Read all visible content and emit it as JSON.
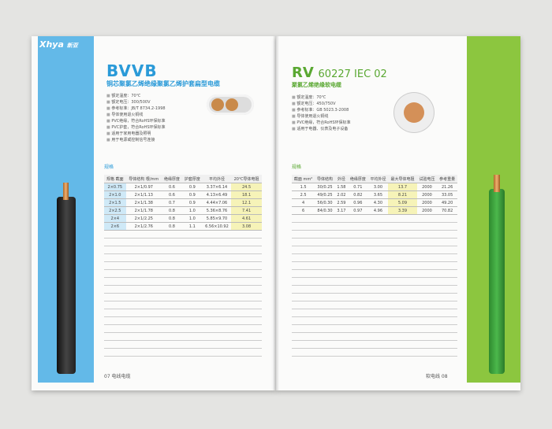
{
  "left_page": {
    "brand": "Xhya",
    "brand_cn": "新亚",
    "title": "BVVB",
    "subtitle": "铜芯聚氯乙烯绝缘聚氯乙烯护套扁型电缆",
    "features": [
      "额定温度：70℃",
      "额定电压：300/500V",
      "参考标准：JB/T 8734.2-1998",
      "导体使用退火铜线",
      "PVC绝缘，符合RoHS环保标准",
      "PVC护套，符合RoHS环保标准",
      "适用于家用电器及照明",
      "用于电源或控制信号连接"
    ],
    "table_label": "规格",
    "table": {
      "headers": [
        "规格 截面",
        "导体结构 根/mm",
        "绝缘厚度",
        "护套厚度",
        "平均外径",
        "20℃导体电阻"
      ],
      "rows": [
        [
          "2×0.75",
          "2×1/0.97",
          "0.6",
          "0.9",
          "3.37×6.14",
          "24.5"
        ],
        [
          "2×1.0",
          "2×1/1.13",
          "0.6",
          "0.9",
          "4.13×6.49",
          "18.1"
        ],
        [
          "2×1.5",
          "2×1/1.38",
          "0.7",
          "0.9",
          "4.44×7.06",
          "12.1"
        ],
        [
          "2×2.5",
          "2×1/1.78",
          "0.8",
          "1.0",
          "5.36×8.76",
          "7.41"
        ],
        [
          "2×4",
          "2×1/2.25",
          "0.8",
          "1.0",
          "5.85×9.70",
          "4.61"
        ],
        [
          "2×6",
          "2×1/2.76",
          "0.8",
          "1.1",
          "6.56×10.92",
          "3.08"
        ]
      ]
    },
    "footer": "07 电线电缆"
  },
  "right_page": {
    "title": "RV",
    "standard": "60227 IEC 02",
    "subtitle": "聚氯乙烯绝缘软电缆",
    "features": [
      "额定温度：70℃",
      "额定电压：450/750V",
      "参考标准：GB 5023.3-2008",
      "导体使用退火铜线",
      "PVC绝缘，符合RoHS环保标准",
      "适用于电器、仪表及电子设备"
    ],
    "table_label": "规格",
    "table": {
      "headers": [
        "截面 mm²",
        "导体结构",
        "外径",
        "绝缘厚度",
        "平均外径",
        "最大导体电阻",
        "试验电压",
        "参考重量"
      ],
      "rows": [
        [
          "1.5",
          "30/0.25",
          "1.58",
          "0.71",
          "3.00",
          "13.7",
          "2000",
          "21.26"
        ],
        [
          "2.5",
          "49/0.25",
          "2.02",
          "0.82",
          "3.65",
          "8.21",
          "2000",
          "33.05"
        ],
        [
          "4",
          "56/0.30",
          "2.59",
          "0.96",
          "4.30",
          "5.09",
          "2000",
          "49.20"
        ],
        [
          "6",
          "84/0.30",
          "3.17",
          "0.97",
          "4.96",
          "3.39",
          "2000",
          "70.82"
        ]
      ]
    },
    "footer": "软电线 08"
  }
}
